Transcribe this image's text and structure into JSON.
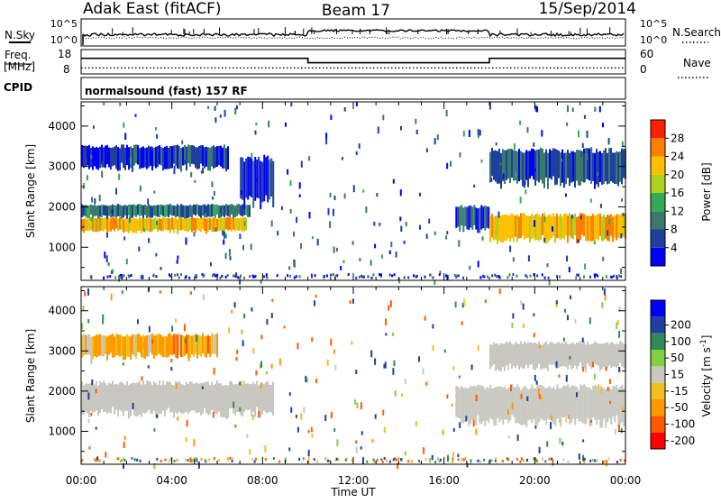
{
  "header": {
    "station": "Adak East (fitACF)",
    "beam": "Beam 17",
    "date": "15/Sep/2014"
  },
  "side_labels": {
    "nsky": "N.Sky",
    "nsky_tick_hi": "10^5",
    "nsky_tick_lo": "10^0",
    "nsearch": "N.Search",
    "nsearch_tick_hi": "10^5",
    "nsearch_tick_lo": "10^0",
    "freq": "Freq.",
    "freq_unit": "[MHz]",
    "freq_tick_hi": "18",
    "freq_tick_lo": "8",
    "nave": "Nave",
    "nave_tick_hi": "60",
    "nave_tick_lo": "0",
    "cpid": "CPID",
    "cpid_value": "normalsound (fast) 157 RF"
  },
  "colors": {
    "power_scale": [
      "#0000ff",
      "#2040a0",
      "#3a7a6a",
      "#33aa55",
      "#b0d020",
      "#ffc000",
      "#ff8000",
      "#ff2000"
    ],
    "velocity_scale": [
      "#ff0000",
      "#ff5a00",
      "#ff9a00",
      "#f0c020",
      "#c8c8c0",
      "#80d040",
      "#2e8b57",
      "#2040a0",
      "#0000ff"
    ],
    "ground_scatter": "#c8c8c0"
  },
  "chart_data": [
    {
      "type": "line",
      "title": "N.Sky / N.Search",
      "ylim": [
        1,
        100000
      ],
      "ytick_labels": [
        "10^0",
        "10^5"
      ]
    },
    {
      "type": "line",
      "title": "Freq. / Nave",
      "series": [
        {
          "name": "Freq.",
          "x": [
            "00:00",
            "10:00",
            "10:00",
            "18:00",
            "18:00",
            "24:00"
          ],
          "values": [
            14.4,
            14.4,
            12.6,
            12.6,
            14.4,
            14.4
          ]
        },
        {
          "name": "Nave",
          "x": [
            "00:00",
            "24:00"
          ],
          "values": [
            15,
            15
          ]
        }
      ],
      "ylim_left": [
        8,
        18
      ],
      "ylim_right": [
        0,
        60
      ]
    },
    {
      "type": "heatmap",
      "quantity": "Power",
      "colorbar_label": "Power [dB]",
      "colorbar_ticks": [
        "4",
        "8",
        "12",
        "16",
        "20",
        "24",
        "28"
      ],
      "ylabel": "Slant Range [km]",
      "yticks": [
        1000,
        2000,
        3000,
        4000
      ],
      "ylim": [
        180,
        4600
      ],
      "regions": [
        {
          "x_start": "00:00",
          "x_end": "07:20",
          "range_start": 1350,
          "range_end": 1720,
          "level_db": 28
        },
        {
          "x_start": "00:00",
          "x_end": "07:30",
          "range_start": 1720,
          "range_end": 2050,
          "level_db": 14
        },
        {
          "x_start": "00:00",
          "x_end": "06:30",
          "range_start": 2900,
          "range_end": 3500,
          "level_db": 10
        },
        {
          "x_start": "07:00",
          "x_end": "08:30",
          "range_start": 2000,
          "range_end": 3200,
          "level_db": 10
        },
        {
          "x_start": "16:30",
          "x_end": "18:00",
          "range_start": 1350,
          "range_end": 2000,
          "level_db": 12
        },
        {
          "x_start": "18:00",
          "x_end": "24:00",
          "range_start": 1100,
          "range_end": 1800,
          "level_db": 28
        },
        {
          "x_start": "18:00",
          "x_end": "24:00",
          "range_start": 2500,
          "range_end": 3400,
          "level_db": 12
        }
      ]
    },
    {
      "type": "heatmap",
      "quantity": "Velocity",
      "colorbar_label": "Velocity [m s^-1]",
      "colorbar_ticks": [
        "-200",
        "-100",
        "-50",
        "-15",
        "15",
        "50",
        "100",
        "200"
      ],
      "ylabel": "Slant Range [km]",
      "xlabel": "Time UT",
      "xtick_labels": [
        "00:00",
        "04:00",
        "08:00",
        "12:00",
        "16:00",
        "20:00",
        "00:00"
      ],
      "yticks": [
        1000,
        2000,
        3000,
        4000
      ],
      "ylim": [
        180,
        4600
      ],
      "regions": [
        {
          "x_start": "00:00",
          "x_end": "08:30",
          "range_start": 1350,
          "range_end": 2200,
          "velocity": 0,
          "ground_scatter": true
        },
        {
          "x_start": "16:30",
          "x_end": "24:00",
          "range_start": 1100,
          "range_end": 2100,
          "velocity": 0,
          "ground_scatter": true
        },
        {
          "x_start": "18:00",
          "x_end": "24:00",
          "range_start": 2500,
          "range_end": 3200,
          "velocity": 0,
          "ground_scatter": true
        },
        {
          "x_start": "00:00",
          "x_end": "06:00",
          "range_start": 2800,
          "range_end": 3400,
          "velocity": -50
        }
      ]
    }
  ]
}
